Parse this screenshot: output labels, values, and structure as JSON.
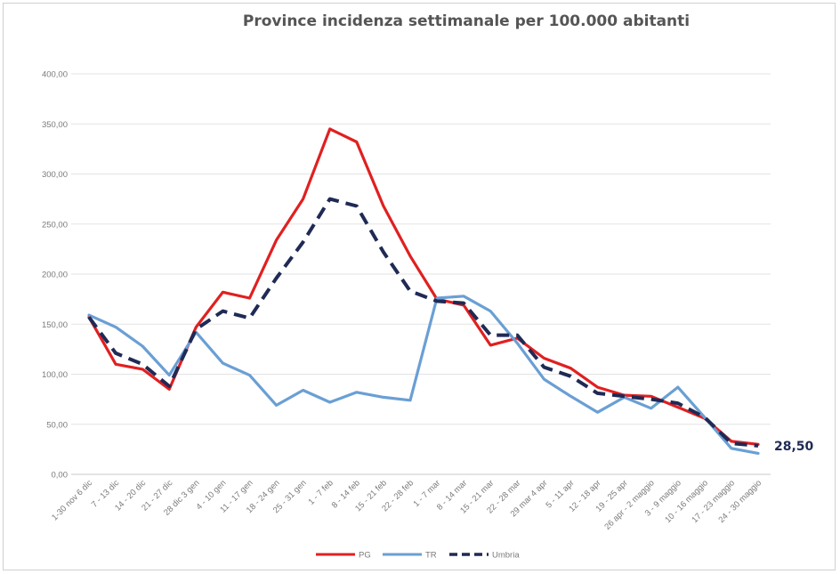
{
  "chart_data": {
    "type": "line",
    "title": "Province incidenza settimanale per 100.000 abitanti",
    "xlabel": "",
    "ylabel": "",
    "ylim": [
      0,
      400
    ],
    "ytick_labels": [
      "0,00",
      "50,00",
      "100,00",
      "150,00",
      "200,00",
      "250,00",
      "300,00",
      "350,00",
      "400,00"
    ],
    "grid": true,
    "legend_position": "bottom",
    "categories": [
      "1-30 nov 6 dic",
      "7 - 13 dic",
      "14 - 20 dic",
      "21 - 27 dic",
      "28 dic 3 gen",
      "4 - 10 gen",
      "11 - 17 gen",
      "18 - 24 gen",
      "25 - 31 gen",
      "1 - 7 feb",
      "8 - 14 feb",
      "15 - 21 feb",
      "22 - 28 feb",
      "1 - 7 mar",
      "8 - 14 mar",
      "15 - 21 mar",
      "22 - 28 mar",
      "29 mar 4 apr",
      "5 - 11 apr",
      "12 - 18 apr",
      "19 - 25 apr",
      "26 apr - 2 maggio",
      "3 - 9 maggio",
      "10 - 16 maggio",
      "17 - 23 maggio",
      "24 - 30 maggio"
    ],
    "series": [
      {
        "name": "PG",
        "color": "#e02020",
        "style": "solid",
        "values": [
          157,
          110,
          105,
          85,
          147,
          182,
          176,
          234,
          275,
          345,
          332,
          268,
          218,
          175,
          169,
          129,
          136,
          116,
          106,
          87,
          79,
          78,
          67,
          56,
          33,
          30
        ]
      },
      {
        "name": "TR",
        "color": "#6a9fd4",
        "style": "solid",
        "values": [
          159,
          147,
          128,
          99,
          142,
          111,
          99,
          69,
          84,
          72,
          82,
          77,
          74,
          176,
          178,
          163,
          131,
          95,
          78,
          62,
          77,
          66,
          87,
          57,
          26,
          21
        ]
      },
      {
        "name": "Umbria",
        "color": "#1f2a55",
        "style": "dashed",
        "values": [
          157,
          121,
          110,
          88,
          145,
          163,
          156,
          196,
          232,
          275,
          268,
          222,
          183,
          173,
          171,
          139,
          139,
          107,
          98,
          81,
          78,
          75,
          71,
          57,
          31,
          28.5
        ]
      }
    ],
    "annotations": [
      "28,50"
    ]
  }
}
